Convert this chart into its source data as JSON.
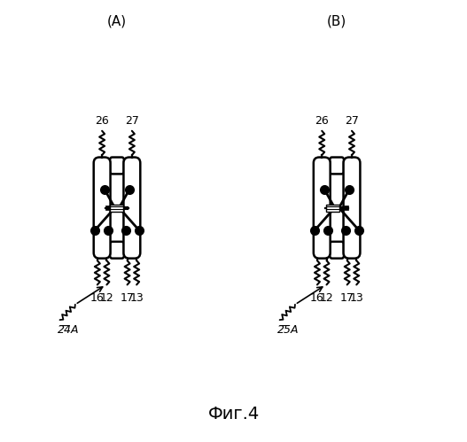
{
  "title": "Фиг.4",
  "label_A": "(А)",
  "label_B": "(В)",
  "label_24A": "24А",
  "label_25A": "25А",
  "bg_color": "#ffffff",
  "line_color": "#000000",
  "fig_label_fontsize": 14,
  "annotation_fontsize": 11,
  "caption_fontsize": 16
}
